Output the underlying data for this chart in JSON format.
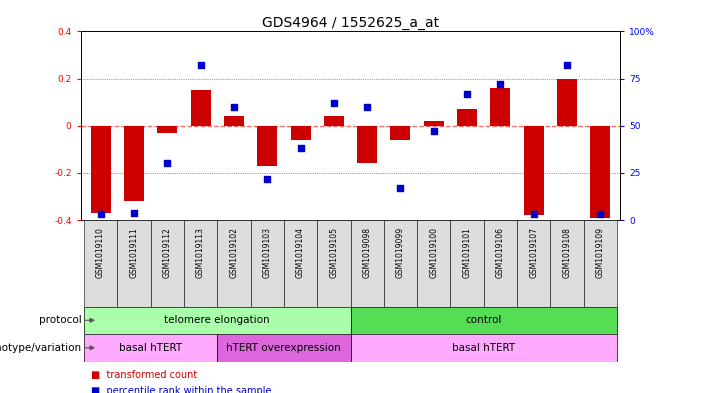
{
  "title": "GDS4964 / 1552625_a_at",
  "samples": [
    "GSM1019110",
    "GSM1019111",
    "GSM1019112",
    "GSM1019113",
    "GSM1019102",
    "GSM1019103",
    "GSM1019104",
    "GSM1019105",
    "GSM1019098",
    "GSM1019099",
    "GSM1019100",
    "GSM1019101",
    "GSM1019106",
    "GSM1019107",
    "GSM1019108",
    "GSM1019109"
  ],
  "transformed_count": [
    -0.37,
    -0.32,
    -0.03,
    0.15,
    0.04,
    -0.17,
    -0.06,
    0.04,
    -0.16,
    -0.06,
    0.02,
    0.07,
    0.16,
    -0.38,
    0.2,
    -0.39
  ],
  "percentile_rank": [
    3,
    4,
    30,
    82,
    60,
    22,
    38,
    62,
    60,
    17,
    47,
    67,
    72,
    3,
    82,
    3
  ],
  "ylim_left": [
    -0.4,
    0.4
  ],
  "ylim_right": [
    0,
    100
  ],
  "yticks_left": [
    -0.4,
    -0.2,
    0.0,
    0.2,
    0.4
  ],
  "yticks_right": [
    0,
    25,
    50,
    75,
    100
  ],
  "bar_color": "#cc0000",
  "dot_color": "#0000cc",
  "dot_size": 18,
  "protocol_segs": [
    {
      "text": "telomere elongation",
      "start": 0,
      "end": 7,
      "color": "#aaffaa"
    },
    {
      "text": "control",
      "start": 8,
      "end": 15,
      "color": "#55dd55"
    }
  ],
  "genotype_segs": [
    {
      "text": "basal hTERT",
      "start": 0,
      "end": 3,
      "color": "#ffaaff"
    },
    {
      "text": "hTERT overexpression",
      "start": 4,
      "end": 7,
      "color": "#dd66dd"
    },
    {
      "text": "basal hTERT",
      "start": 8,
      "end": 15,
      "color": "#ffaaff"
    }
  ],
  "hline0_color": "#ff6666",
  "hline0_style": "--",
  "dotted_color": "#444444",
  "bg_color": "white",
  "title_fontsize": 10,
  "tick_fontsize": 6.5,
  "annot_fontsize": 8
}
